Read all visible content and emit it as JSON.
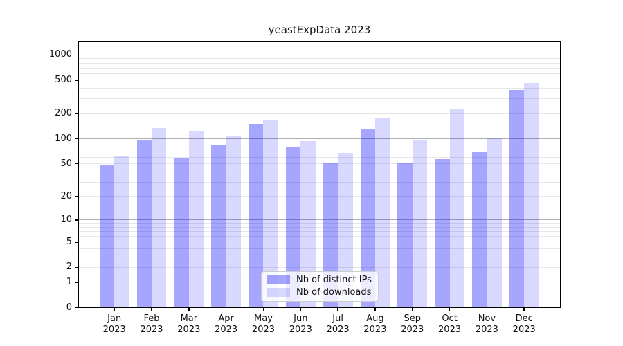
{
  "figure": {
    "title": "yeastExpData 2023"
  },
  "chart_data": {
    "type": "bar",
    "title": "yeastExpData 2023",
    "categories": [
      "Jan",
      "Feb",
      "Mar",
      "Apr",
      "May",
      "Jun",
      "Jul",
      "Aug",
      "Sep",
      "Oct",
      "Nov",
      "Dec"
    ],
    "xtick_year": "2023",
    "series": [
      {
        "name": "Nb of distinct IPs",
        "color": "rgba(0,0,255,0.35)",
        "values": [
          48,
          97,
          58,
          85,
          150,
          81,
          52,
          129,
          51,
          57,
          69,
          385
        ]
      },
      {
        "name": "Nb of downloads",
        "color": "rgba(0,0,255,0.15)",
        "values": [
          61,
          135,
          123,
          109,
          168,
          94,
          68,
          180,
          98,
          230,
          104,
          463
        ]
      }
    ],
    "xlabel": "",
    "ylabel": "",
    "yscale": "log1p",
    "ylim": [
      0,
      1440
    ],
    "yticks": [
      0,
      1,
      2,
      5,
      10,
      20,
      50,
      100,
      200,
      500,
      1000
    ],
    "ytick_labels": [
      "0",
      "1",
      "2",
      "5",
      "10",
      "20",
      "50",
      "100",
      "200",
      "500",
      "1000"
    ],
    "major_grid_values": [
      1,
      10,
      100,
      1000
    ],
    "grid": true,
    "legend_position": "lower center",
    "colors": {
      "major_grid": "#b0b0b0",
      "minor_grid": "#e7e7e7",
      "spine": "#000000",
      "text": "#111111"
    }
  }
}
